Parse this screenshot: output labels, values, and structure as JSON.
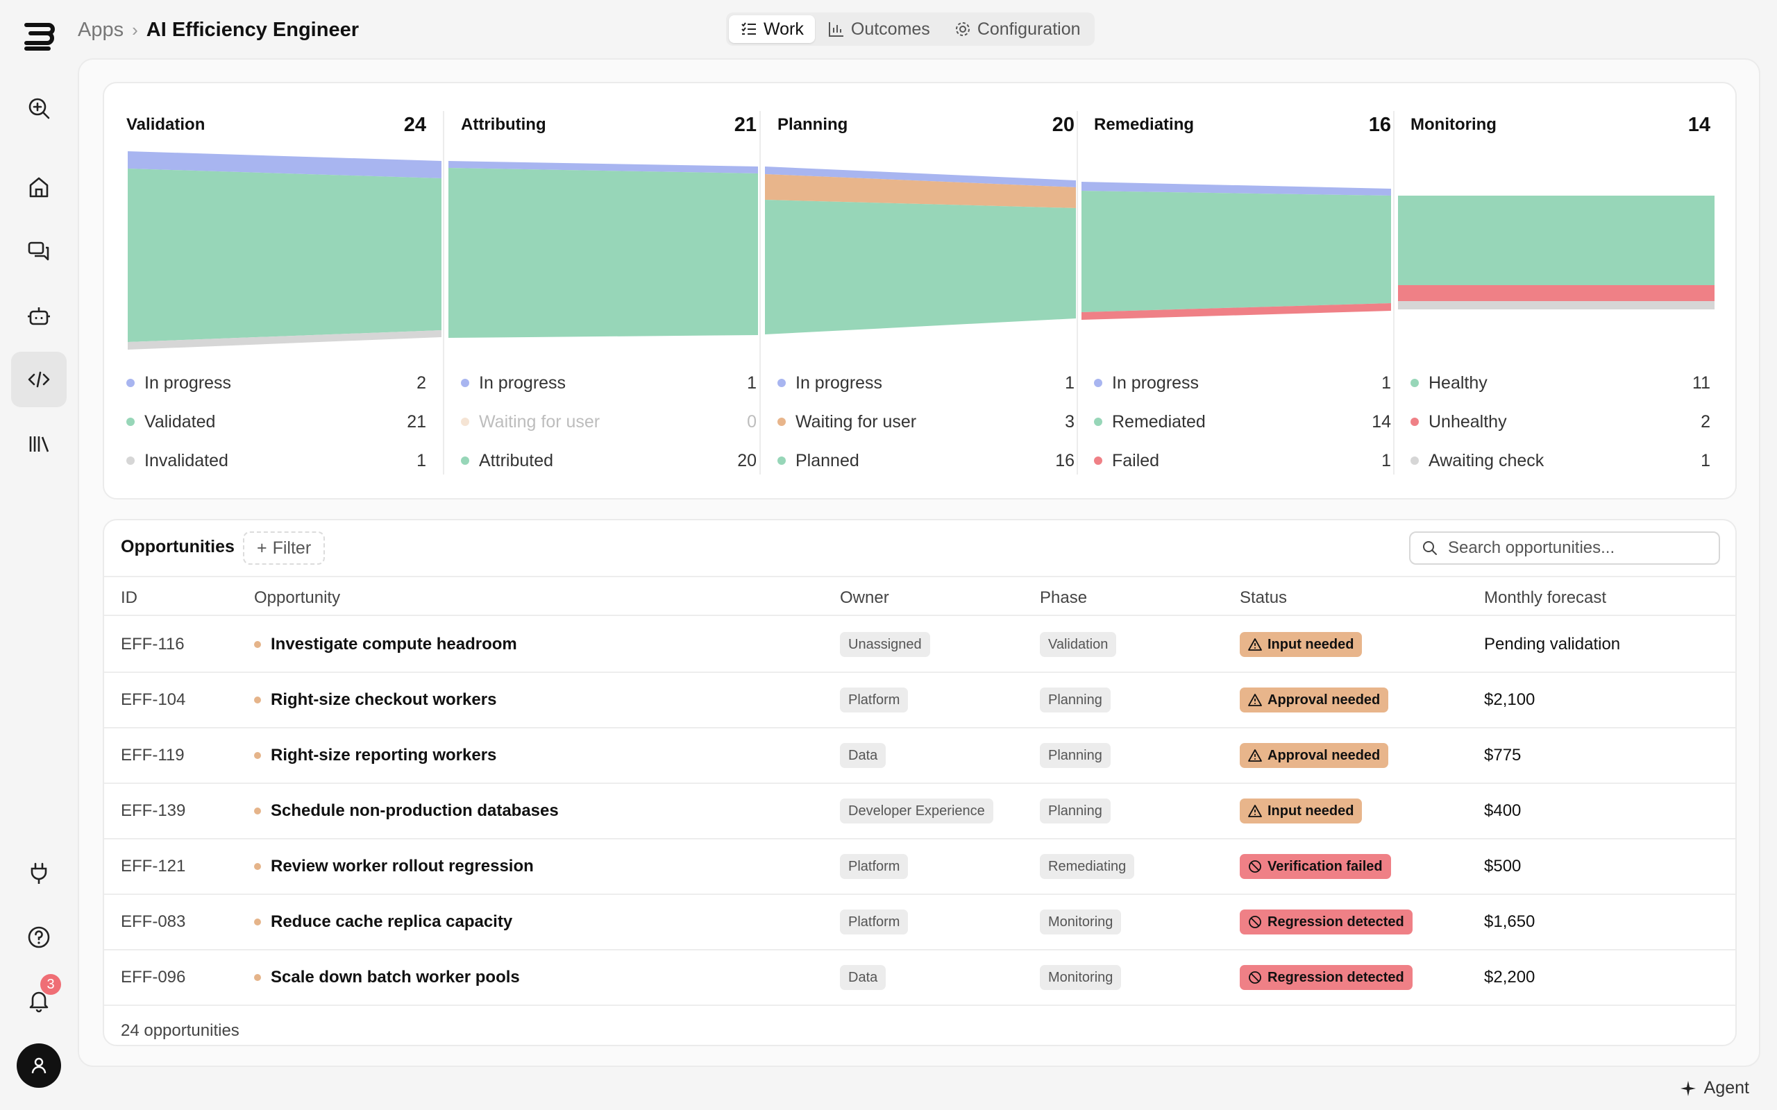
{
  "breadcrumb": {
    "root": "Apps",
    "current": "AI Efficiency Engineer"
  },
  "tabs": [
    {
      "label": "Work",
      "icon": "list-check-icon",
      "active": true
    },
    {
      "label": "Outcomes",
      "icon": "bar-chart-icon",
      "active": false
    },
    {
      "label": "Configuration",
      "icon": "gear-icon",
      "active": false
    }
  ],
  "rail": {
    "notification_count": "3"
  },
  "colors": {
    "in_progress": "#a8b5f0",
    "green": "#97d6b8",
    "orange": "#e8b58b",
    "red": "#ef8086",
    "gray": "#d6d6d6"
  },
  "stages": [
    {
      "name": "Validation",
      "count": "24",
      "legend": [
        {
          "label": "In progress",
          "value": "2",
          "color": "in_progress"
        },
        {
          "label": "Validated",
          "value": "21",
          "color": "green"
        },
        {
          "label": "Invalidated",
          "value": "1",
          "color": "gray"
        }
      ]
    },
    {
      "name": "Attributing",
      "count": "21",
      "legend": [
        {
          "label": "In progress",
          "value": "1",
          "color": "in_progress"
        },
        {
          "label": "Waiting for user",
          "value": "0",
          "color": "orange",
          "muted": true
        },
        {
          "label": "Attributed",
          "value": "20",
          "color": "green"
        }
      ]
    },
    {
      "name": "Planning",
      "count": "20",
      "legend": [
        {
          "label": "In progress",
          "value": "1",
          "color": "in_progress"
        },
        {
          "label": "Waiting for user",
          "value": "3",
          "color": "orange"
        },
        {
          "label": "Planned",
          "value": "16",
          "color": "green"
        }
      ]
    },
    {
      "name": "Remediating",
      "count": "16",
      "legend": [
        {
          "label": "In progress",
          "value": "1",
          "color": "in_progress"
        },
        {
          "label": "Remediated",
          "value": "14",
          "color": "green"
        },
        {
          "label": "Failed",
          "value": "1",
          "color": "red"
        }
      ]
    },
    {
      "name": "Monitoring",
      "count": "14",
      "legend": [
        {
          "label": "Healthy",
          "value": "11",
          "color": "green"
        },
        {
          "label": "Unhealthy",
          "value": "2",
          "color": "red"
        },
        {
          "label": "Awaiting check",
          "value": "1",
          "color": "gray"
        }
      ]
    }
  ],
  "opportunities": {
    "title": "Opportunities",
    "filter_label": "Filter",
    "search_placeholder": "Search opportunities...",
    "columns": [
      "ID",
      "Opportunity",
      "Owner",
      "Phase",
      "Status",
      "Monthly forecast"
    ],
    "rows": [
      {
        "id": "EFF-116",
        "name": "Investigate compute headroom",
        "owner": "Unassigned",
        "phase": "Validation",
        "status": "Input needed",
        "status_kind": "warn",
        "forecast": "Pending validation"
      },
      {
        "id": "EFF-104",
        "name": "Right-size checkout workers",
        "owner": "Platform",
        "phase": "Planning",
        "status": "Approval needed",
        "status_kind": "warn",
        "forecast": "$2,100"
      },
      {
        "id": "EFF-119",
        "name": "Right-size reporting workers",
        "owner": "Data",
        "phase": "Planning",
        "status": "Approval needed",
        "status_kind": "warn",
        "forecast": "$775"
      },
      {
        "id": "EFF-139",
        "name": "Schedule non-production databases",
        "owner": "Developer Experience",
        "phase": "Planning",
        "status": "Input needed",
        "status_kind": "warn",
        "forecast": "$400"
      },
      {
        "id": "EFF-121",
        "name": "Review worker rollout regression",
        "owner": "Platform",
        "phase": "Remediating",
        "status": "Verification failed",
        "status_kind": "err",
        "forecast": "$500"
      },
      {
        "id": "EFF-083",
        "name": "Reduce cache replica capacity",
        "owner": "Platform",
        "phase": "Monitoring",
        "status": "Regression detected",
        "status_kind": "err",
        "forecast": "$1,650"
      },
      {
        "id": "EFF-096",
        "name": "Scale down batch worker pools",
        "owner": "Data",
        "phase": "Monitoring",
        "status": "Regression detected",
        "status_kind": "err",
        "forecast": "$2,200"
      }
    ],
    "footer": "24 opportunities"
  },
  "agent_label": "Agent"
}
